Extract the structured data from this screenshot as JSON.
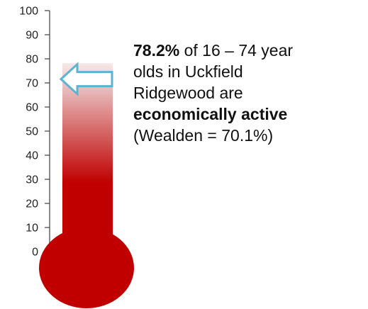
{
  "chart_data": {
    "type": "thermometer",
    "value": 78.2,
    "comparison_value": 70.1,
    "ylim": [
      0,
      100
    ],
    "ticks": [
      "0",
      "10",
      "20",
      "30",
      "40",
      "50",
      "60",
      "70",
      "80",
      "90",
      "100"
    ],
    "colors": {
      "fill": "#c00000",
      "bulb": "#c00000",
      "arrow_stroke": "#5ab4d2",
      "axis": "#404040"
    }
  },
  "annotation": {
    "value_text": "78.2%",
    "line1_rest": " of 16 – 74 year",
    "line2": "olds in Uckfield",
    "line3": "Ridgewood are",
    "emphasis": "economically active",
    "comparison": "(Wealden = 70.1%)"
  },
  "icons": {
    "pointer": "left-arrow-icon"
  }
}
